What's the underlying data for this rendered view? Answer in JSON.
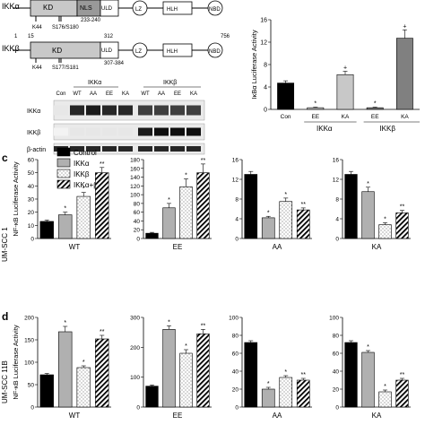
{
  "panel_labels": {
    "c": "c",
    "d": "d"
  },
  "domains": {
    "ikka_name": "IKKα",
    "ikkb_name": "IKKβ",
    "kd": "KD",
    "nls": "NLS",
    "uld": "ULD",
    "lz": "LZ",
    "hlh": "HLH",
    "nbd": "NBD",
    "k44": "K44",
    "a_sites": "S176/S180",
    "a_nls_range": "233-240",
    "b_sites": "S177/S181",
    "b_start": "1",
    "b_kd_pos": "15",
    "b_kd_end": "312",
    "b_range": "307-384",
    "b_end": "756"
  },
  "blot": {
    "group_a": "IKKα",
    "group_b": "IKKβ",
    "lanes": [
      "Con",
      "WT",
      "AA",
      "EE",
      "KA",
      "WT",
      "AA",
      "EE",
      "KA"
    ],
    "rows": [
      "IKKα",
      "IKKβ",
      "β-actin"
    ]
  },
  "row_labels": {
    "c": "UM-SCC 1",
    "d": "UM-SCC 11B"
  },
  "legend": {
    "control": "Control",
    "ikka": "IKKα",
    "ikkb": "IKKβ",
    "both": "IKKα+β"
  },
  "colors": {
    "black": "#000000",
    "gray": "#b0b0b0",
    "light": "#c8c8c8",
    "dark": "#808080"
  },
  "chart_data": [
    {
      "type": "bar",
      "panel": "top",
      "ylabel": "IκBα Luciferase Activity",
      "ylim": [
        0,
        16
      ],
      "yticks": [
        0,
        4,
        8,
        12,
        16
      ],
      "categories": [
        "Con",
        "EE",
        "KA",
        "EE",
        "KA"
      ],
      "groups": [
        "IKKα",
        "IKKβ"
      ],
      "values": [
        4.7,
        0.3,
        6.2,
        0.3,
        12.7
      ],
      "errors": [
        0.4,
        0.1,
        0.6,
        0.1,
        1.5
      ],
      "annotations": [
        "",
        "*",
        "+",
        "*",
        "+"
      ]
    },
    {
      "type": "bar",
      "panel": "c",
      "xlabel": "WT",
      "ylabel": "NF-κB Luciferase Activity",
      "ylim": [
        0,
        60
      ],
      "yticks": [
        0,
        10,
        20,
        30,
        40,
        50,
        60
      ],
      "values": [
        13,
        18,
        32,
        50
      ],
      "errors": [
        1,
        2,
        3,
        4
      ],
      "annotations": [
        "",
        "*",
        "*",
        "**"
      ]
    },
    {
      "type": "bar",
      "panel": "c",
      "xlabel": "EE",
      "ylim": [
        0,
        180
      ],
      "yticks": [
        0,
        20,
        40,
        60,
        80,
        100,
        120,
        140,
        160,
        180
      ],
      "values": [
        12,
        70,
        118,
        150
      ],
      "errors": [
        2,
        10,
        18,
        20
      ],
      "annotations": [
        "",
        "*",
        "*",
        "**"
      ]
    },
    {
      "type": "bar",
      "panel": "c",
      "xlabel": "AA",
      "ylim": [
        0,
        16
      ],
      "yticks": [
        0,
        4,
        8,
        12,
        16
      ],
      "values": [
        13,
        4.2,
        7.5,
        5.8
      ],
      "errors": [
        0.6,
        0.3,
        0.7,
        0.4
      ],
      "annotations": [
        "",
        "*",
        "*",
        "**"
      ]
    },
    {
      "type": "bar",
      "panel": "c",
      "xlabel": "KA",
      "ylim": [
        0,
        16
      ],
      "yticks": [
        0,
        4,
        8,
        12,
        16
      ],
      "values": [
        13,
        9.5,
        2.8,
        5.2
      ],
      "errors": [
        0.6,
        0.9,
        0.4,
        0.5
      ],
      "annotations": [
        "",
        "*",
        "*",
        "**"
      ]
    },
    {
      "type": "bar",
      "panel": "d",
      "xlabel": "WT",
      "ylabel": "NF-κB Luciferase Activity",
      "ylim": [
        0,
        200
      ],
      "yticks": [
        0,
        50,
        100,
        150,
        200
      ],
      "values": [
        72,
        168,
        88,
        152
      ],
      "errors": [
        3,
        12,
        4,
        8
      ],
      "annotations": [
        "",
        "*",
        "*",
        "**"
      ]
    },
    {
      "type": "bar",
      "panel": "d",
      "xlabel": "EE",
      "ylim": [
        0,
        300
      ],
      "yticks": [
        0,
        100,
        200,
        300
      ],
      "values": [
        70,
        260,
        180,
        245
      ],
      "errors": [
        4,
        12,
        12,
        15
      ],
      "annotations": [
        "",
        "*",
        "*",
        "**"
      ]
    },
    {
      "type": "bar",
      "panel": "d",
      "xlabel": "AA",
      "ylim": [
        0,
        100
      ],
      "yticks": [
        0,
        20,
        40,
        60,
        80,
        100
      ],
      "values": [
        72,
        20,
        33,
        30
      ],
      "errors": [
        2,
        2,
        2,
        2
      ],
      "annotations": [
        "",
        "*",
        "*",
        "**"
      ]
    },
    {
      "type": "bar",
      "panel": "d",
      "xlabel": "KA",
      "ylim": [
        0,
        100
      ],
      "yticks": [
        0,
        20,
        40,
        60,
        80,
        100
      ],
      "values": [
        72,
        61,
        17,
        30
      ],
      "errors": [
        2,
        2,
        2,
        2
      ],
      "annotations": [
        "",
        "*",
        "*",
        "**"
      ]
    }
  ]
}
